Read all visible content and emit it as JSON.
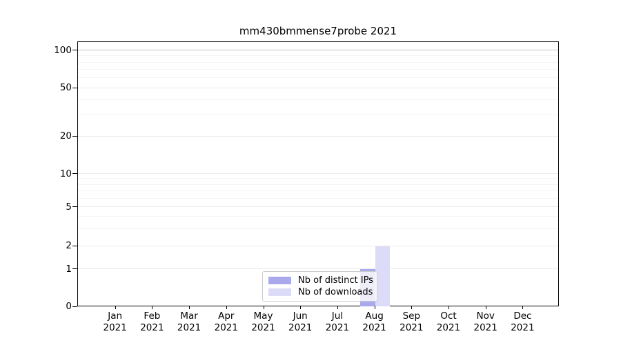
{
  "chart_data": {
    "type": "bar",
    "title": "mm430bmmense7probe 2021",
    "xlabel": "",
    "ylabel": "",
    "categories": [
      "Jan",
      "Feb",
      "Mar",
      "Apr",
      "May",
      "Jun",
      "Jul",
      "Aug",
      "Sep",
      "Oct",
      "Nov",
      "Dec"
    ],
    "x_tick_year": "2021",
    "series": [
      {
        "name": "Nb of distinct IPs",
        "color": "#a9a9ec",
        "values": [
          0,
          0,
          0,
          0,
          0,
          0,
          0,
          1,
          0,
          0,
          0,
          0
        ]
      },
      {
        "name": "Nb of downloads",
        "color": "#dcdcf8",
        "values": [
          0,
          0,
          0,
          0,
          0,
          0,
          0,
          2,
          0,
          0,
          0,
          0
        ]
      }
    ],
    "yscale": "symlog",
    "yticks": [
      0,
      1,
      2,
      5,
      10,
      20,
      50,
      100
    ],
    "minor_yticks": [
      3,
      4,
      6,
      7,
      8,
      9,
      30,
      40,
      60,
      70,
      80,
      90
    ],
    "ylim": [
      0,
      117
    ],
    "grid": "horizontal major+minor",
    "legend_position": "lower center inside axes",
    "colors": {
      "grid_emphasis": "#c3c3c3",
      "grid_major": "#ebebeb",
      "grid_minor": "#f4f4f4",
      "spine": "#000000"
    }
  }
}
